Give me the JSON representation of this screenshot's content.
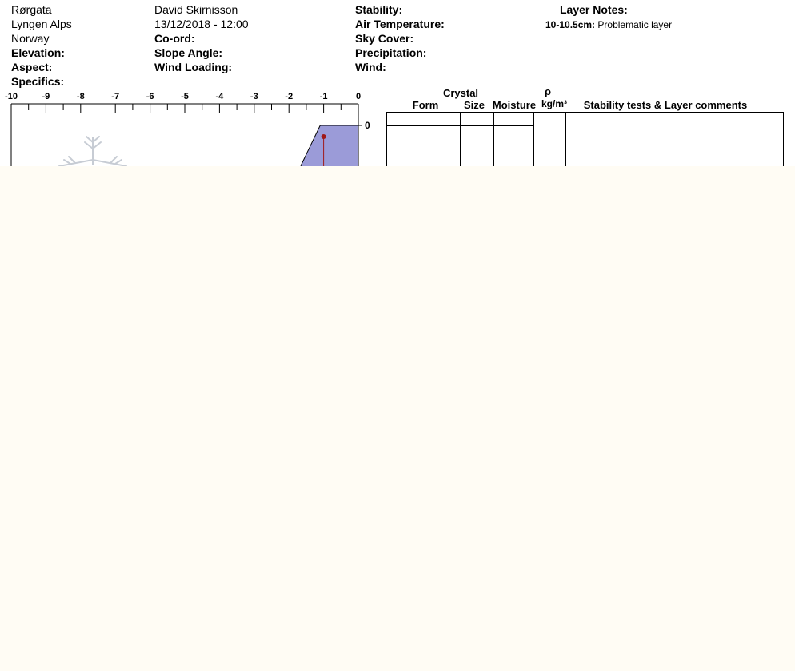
{
  "header": {
    "location": "Rørgata",
    "region": "Lyngen Alps",
    "country": "Norway",
    "elevation_label": "Elevation:",
    "aspect_label": "Aspect:",
    "specifics_label": "Specifics:",
    "observer": "David Skirnisson",
    "datetime": "13/12/2018 - 12:00",
    "coord_label": "Co-ord:",
    "slope_label": "Slope Angle:",
    "wind_loading_label": "Wind Loading:",
    "stability_label": "Stability:",
    "air_temp_label": "Air Temperature:",
    "sky_cover_label": "Sky Cover:",
    "precipitation_label": "Precipitation:",
    "wind_label": "Wind:"
  },
  "layer_notes": {
    "title": "Layer Notes:",
    "entries": [
      {
        "range": "10-10.5cm:",
        "note": "Problematic layer"
      }
    ]
  },
  "table": {
    "crystal_label": "Crystal",
    "form_label": "Form",
    "size_label": "Size",
    "moisture_label": "Moisture",
    "rho_label": "ρ",
    "density_unit": "kg/m³",
    "comments_label": "Stability tests & Layer comments"
  },
  "chart_data": {
    "type": "area",
    "x_ticks": [
      "-10",
      "-9",
      "-8",
      "-7",
      "-6",
      "-5",
      "-4",
      "-3",
      "-2",
      "-1",
      "0"
    ],
    "xlim": [
      -10,
      0
    ],
    "y_ticks": [
      "0"
    ],
    "hardness_profile": [
      {
        "depth_start": 0,
        "hardness": -1.1
      }
    ],
    "temperature_profile": [
      {
        "depth": 0.5,
        "temp": -1
      }
    ],
    "colors": {
      "hardness_fill": "#9b9bd8",
      "temperature": "#a01818"
    }
  }
}
